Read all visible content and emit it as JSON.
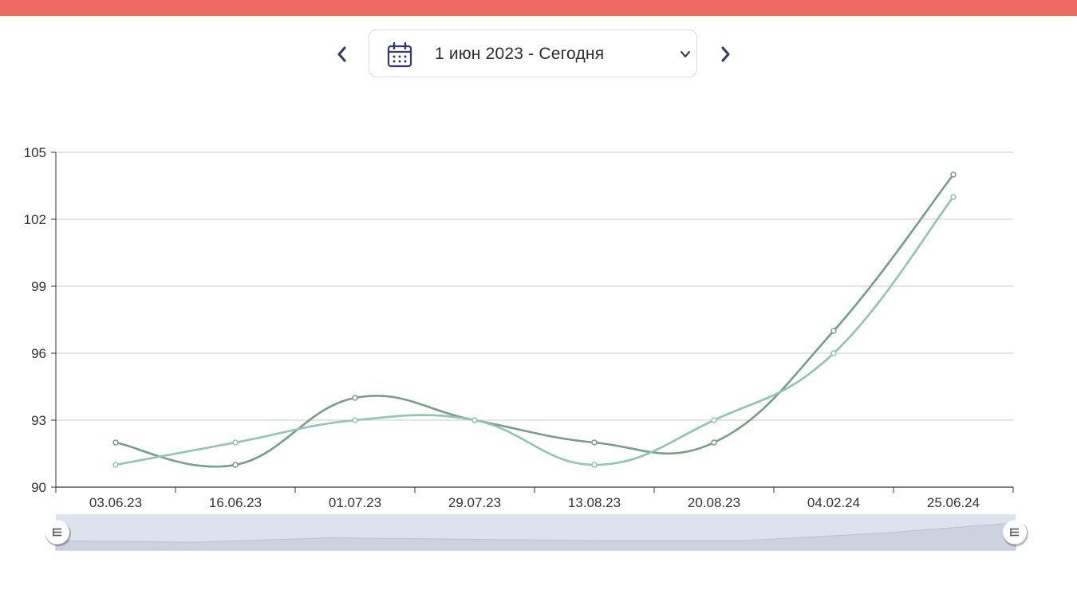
{
  "date_range": {
    "label": "1 июн 2023 - Сегодня",
    "prev_icon": "chevron-left-icon",
    "next_icon": "chevron-right-icon",
    "calendar_icon": "calendar-icon",
    "dropdown_icon": "chevron-down-icon"
  },
  "colors": {
    "top_bar": "#f06a64",
    "series_1": "#76a086",
    "series_2": "#90c5b1",
    "nav": "#2d3a6b"
  },
  "chart_data": {
    "type": "line",
    "categories": [
      "03.06.23",
      "16.06.23",
      "01.07.23",
      "29.07.23",
      "13.08.23",
      "20.08.23",
      "04.02.24",
      "25.06.24"
    ],
    "series": [
      {
        "values": [
          92,
          91,
          94,
          93,
          92,
          92,
          97,
          104
        ]
      },
      {
        "values": [
          91,
          92,
          93,
          93,
          91,
          93,
          96,
          103
        ]
      }
    ],
    "y_ticks": [
      "90",
      "93",
      "96",
      "99",
      "102",
      "105"
    ],
    "ylim": [
      90,
      105
    ],
    "grid": true,
    "smooth": true,
    "data_zoom": {
      "start": 0,
      "end": 1
    }
  }
}
